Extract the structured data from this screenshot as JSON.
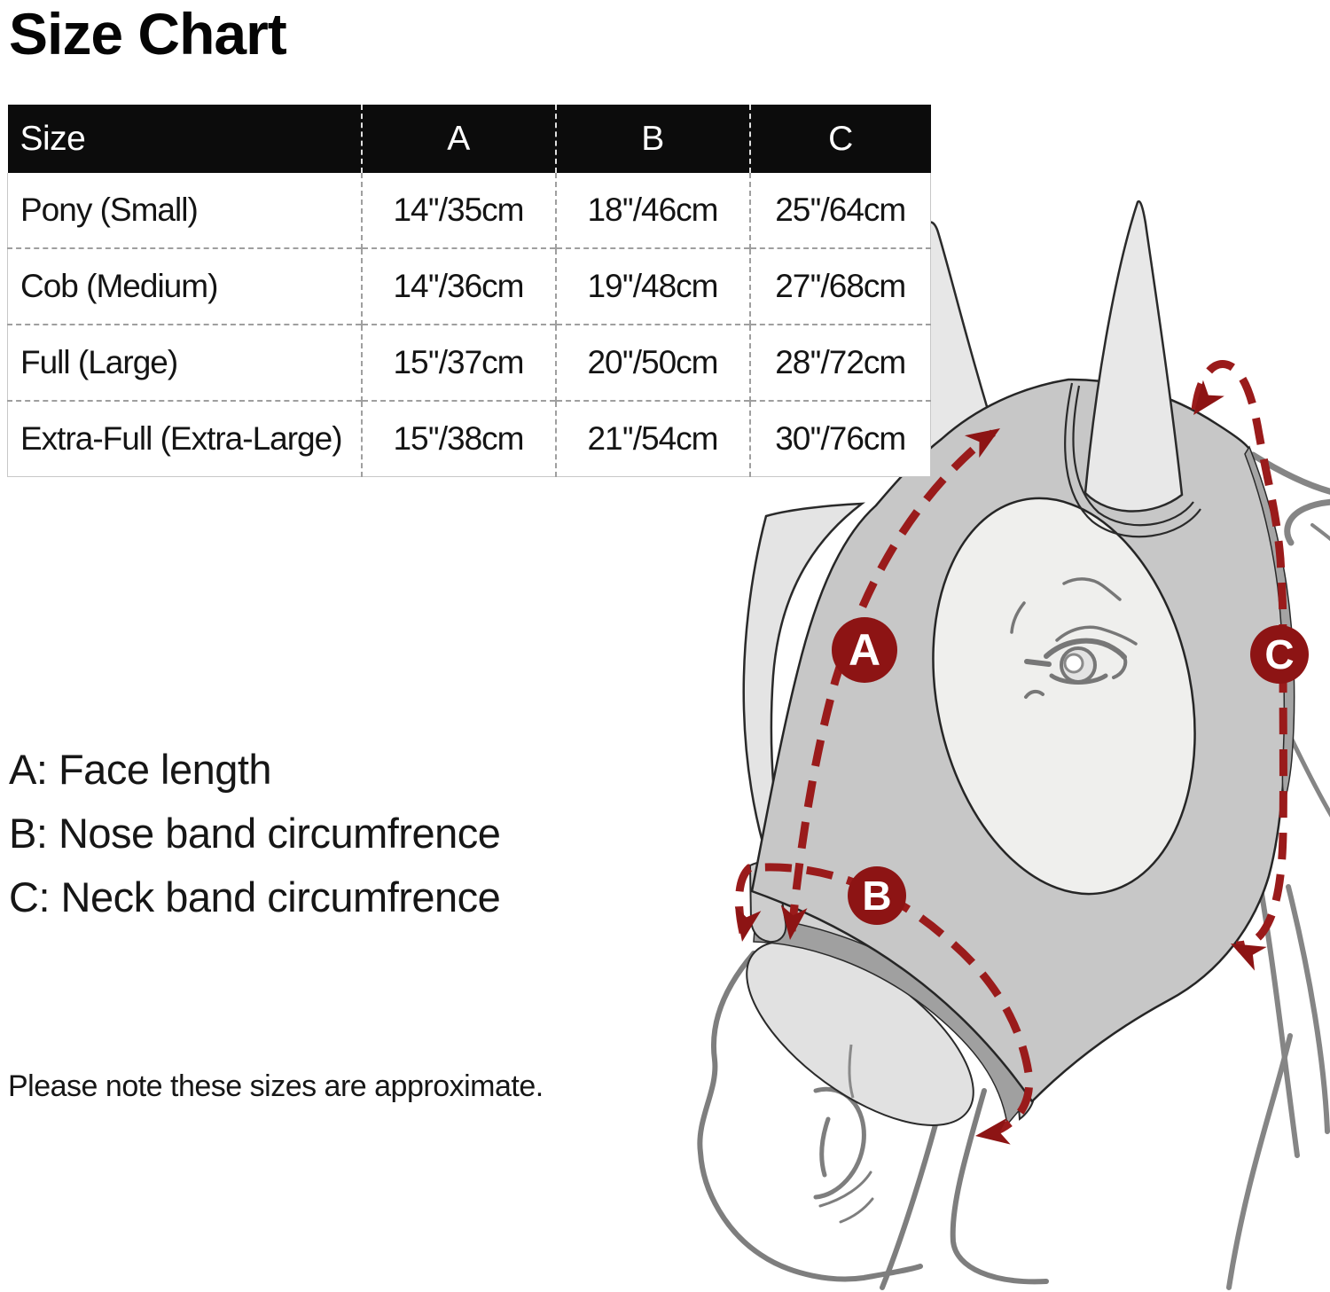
{
  "title": "Size Chart",
  "table": {
    "columns": [
      "Size",
      "A",
      "B",
      "C"
    ],
    "rows": [
      [
        "Pony (Small)",
        "14''/35cm",
        "18''/46cm",
        "25''/64cm"
      ],
      [
        "Cob (Medium)",
        "14''/36cm",
        "19''/48cm",
        "27''/68cm"
      ],
      [
        "Full (Large)",
        "15''/37cm",
        "20''/50cm",
        "28''/72cm"
      ],
      [
        "Extra-Full (Extra-Large)",
        "15''/38cm",
        "21''/54cm",
        "30''/76cm"
      ]
    ]
  },
  "legend": [
    "A: Face length",
    "B: Nose band circumfrence",
    "C: Neck band circumfrence"
  ],
  "note": "Please note these sizes are approximate.",
  "diagram": {
    "marker_a": "A",
    "marker_b": "B",
    "marker_c": "C"
  },
  "colors": {
    "measurement_red": "#9a1b1b",
    "marker_fill": "#8d1414",
    "mask_gray": "#c7c7c7",
    "header_bg": "#0c0c0c"
  },
  "chart_data": {
    "type": "table",
    "columns": [
      "Size",
      "A",
      "B",
      "C"
    ],
    "rows": [
      [
        "Pony (Small)",
        "14''/35cm",
        "18''/46cm",
        "25''/64cm"
      ],
      [
        "Cob (Medium)",
        "14''/36cm",
        "19''/48cm",
        "27''/68cm"
      ],
      [
        "Full (Large)",
        "15''/37cm",
        "20''/50cm",
        "28''/72cm"
      ],
      [
        "Extra-Full (Extra-Large)",
        "15''/38cm",
        "21''/54cm",
        "30''/76cm"
      ]
    ]
  }
}
